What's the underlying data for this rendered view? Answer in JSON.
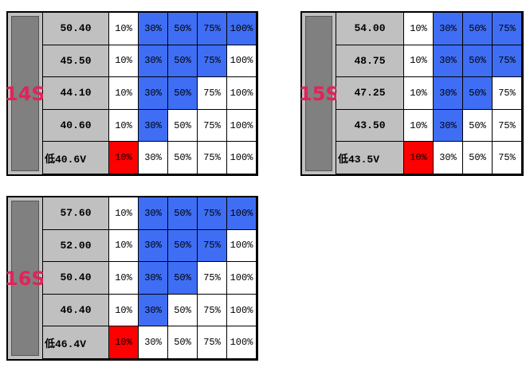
{
  "tables": [
    {
      "label": "14S",
      "rows": [
        {
          "voltage": "50.40",
          "cells": [
            {
              "text": "10%",
              "color": "#ffffff"
            },
            {
              "text": "30%",
              "color": "#3f6ef5"
            },
            {
              "text": "50%",
              "color": "#3f6ef5"
            },
            {
              "text": "75%",
              "color": "#3f6ef5"
            },
            {
              "text": "100%",
              "color": "#3f6ef5"
            }
          ]
        },
        {
          "voltage": "45.50",
          "cells": [
            {
              "text": "10%",
              "color": "#ffffff"
            },
            {
              "text": "30%",
              "color": "#3f6ef5"
            },
            {
              "text": "50%",
              "color": "#3f6ef5"
            },
            {
              "text": "75%",
              "color": "#3f6ef5"
            },
            {
              "text": "100%",
              "color": "#ffffff"
            }
          ]
        },
        {
          "voltage": "44.10",
          "cells": [
            {
              "text": "10%",
              "color": "#ffffff"
            },
            {
              "text": "30%",
              "color": "#3f6ef5"
            },
            {
              "text": "50%",
              "color": "#3f6ef5"
            },
            {
              "text": "75%",
              "color": "#ffffff"
            },
            {
              "text": "100%",
              "color": "#ffffff"
            }
          ]
        },
        {
          "voltage": "40.60",
          "cells": [
            {
              "text": "10%",
              "color": "#ffffff"
            },
            {
              "text": "30%",
              "color": "#3f6ef5"
            },
            {
              "text": "50%",
              "color": "#ffffff"
            },
            {
              "text": "75%",
              "color": "#ffffff"
            },
            {
              "text": "100%",
              "color": "#ffffff"
            }
          ]
        },
        {
          "voltage": "低40.6V",
          "cells": [
            {
              "text": "10%",
              "color": "#ff0000"
            },
            {
              "text": "30%",
              "color": "#ffffff"
            },
            {
              "text": "50%",
              "color": "#ffffff"
            },
            {
              "text": "75%",
              "color": "#ffffff"
            },
            {
              "text": "100%",
              "color": "#ffffff"
            }
          ]
        }
      ]
    },
    {
      "label": "15S",
      "rows": [
        {
          "voltage": "54.00",
          "cells": [
            {
              "text": "10%",
              "color": "#ffffff"
            },
            {
              "text": "30%",
              "color": "#3f6ef5"
            },
            {
              "text": "50%",
              "color": "#3f6ef5"
            },
            {
              "text": "75%",
              "color": "#3f6ef5"
            }
          ]
        },
        {
          "voltage": "48.75",
          "cells": [
            {
              "text": "10%",
              "color": "#ffffff"
            },
            {
              "text": "30%",
              "color": "#3f6ef5"
            },
            {
              "text": "50%",
              "color": "#3f6ef5"
            },
            {
              "text": "75%",
              "color": "#3f6ef5"
            }
          ]
        },
        {
          "voltage": "47.25",
          "cells": [
            {
              "text": "10%",
              "color": "#ffffff"
            },
            {
              "text": "30%",
              "color": "#3f6ef5"
            },
            {
              "text": "50%",
              "color": "#3f6ef5"
            },
            {
              "text": "75%",
              "color": "#ffffff"
            }
          ]
        },
        {
          "voltage": "43.50",
          "cells": [
            {
              "text": "10%",
              "color": "#ffffff"
            },
            {
              "text": "30%",
              "color": "#3f6ef5"
            },
            {
              "text": "50%",
              "color": "#ffffff"
            },
            {
              "text": "75%",
              "color": "#ffffff"
            }
          ]
        },
        {
          "voltage": "低43.5V",
          "cells": [
            {
              "text": "10%",
              "color": "#ff0000"
            },
            {
              "text": "30%",
              "color": "#ffffff"
            },
            {
              "text": "50%",
              "color": "#ffffff"
            },
            {
              "text": "75%",
              "color": "#ffffff"
            }
          ]
        }
      ]
    },
    {
      "label": "16S",
      "rows": [
        {
          "voltage": "57.60",
          "cells": [
            {
              "text": "10%",
              "color": "#ffffff"
            },
            {
              "text": "30%",
              "color": "#3f6ef5"
            },
            {
              "text": "50%",
              "color": "#3f6ef5"
            },
            {
              "text": "75%",
              "color": "#3f6ef5"
            },
            {
              "text": "100%",
              "color": "#3f6ef5"
            }
          ]
        },
        {
          "voltage": "52.00",
          "cells": [
            {
              "text": "10%",
              "color": "#ffffff"
            },
            {
              "text": "30%",
              "color": "#3f6ef5"
            },
            {
              "text": "50%",
              "color": "#3f6ef5"
            },
            {
              "text": "75%",
              "color": "#3f6ef5"
            },
            {
              "text": "100%",
              "color": "#ffffff"
            }
          ]
        },
        {
          "voltage": "50.40",
          "cells": [
            {
              "text": "10%",
              "color": "#ffffff"
            },
            {
              "text": "30%",
              "color": "#3f6ef5"
            },
            {
              "text": "50%",
              "color": "#3f6ef5"
            },
            {
              "text": "75%",
              "color": "#ffffff"
            },
            {
              "text": "100%",
              "color": "#ffffff"
            }
          ]
        },
        {
          "voltage": "46.40",
          "cells": [
            {
              "text": "10%",
              "color": "#ffffff"
            },
            {
              "text": "30%",
              "color": "#3f6ef5"
            },
            {
              "text": "50%",
              "color": "#ffffff"
            },
            {
              "text": "75%",
              "color": "#ffffff"
            },
            {
              "text": "100%",
              "color": "#ffffff"
            }
          ]
        },
        {
          "voltage": "低46.4V",
          "cells": [
            {
              "text": "10%",
              "color": "#ff0000"
            },
            {
              "text": "30%",
              "color": "#ffffff"
            },
            {
              "text": "50%",
              "color": "#ffffff"
            },
            {
              "text": "75%",
              "color": "#ffffff"
            },
            {
              "text": "100%",
              "color": "#ffffff"
            }
          ]
        }
      ]
    }
  ]
}
